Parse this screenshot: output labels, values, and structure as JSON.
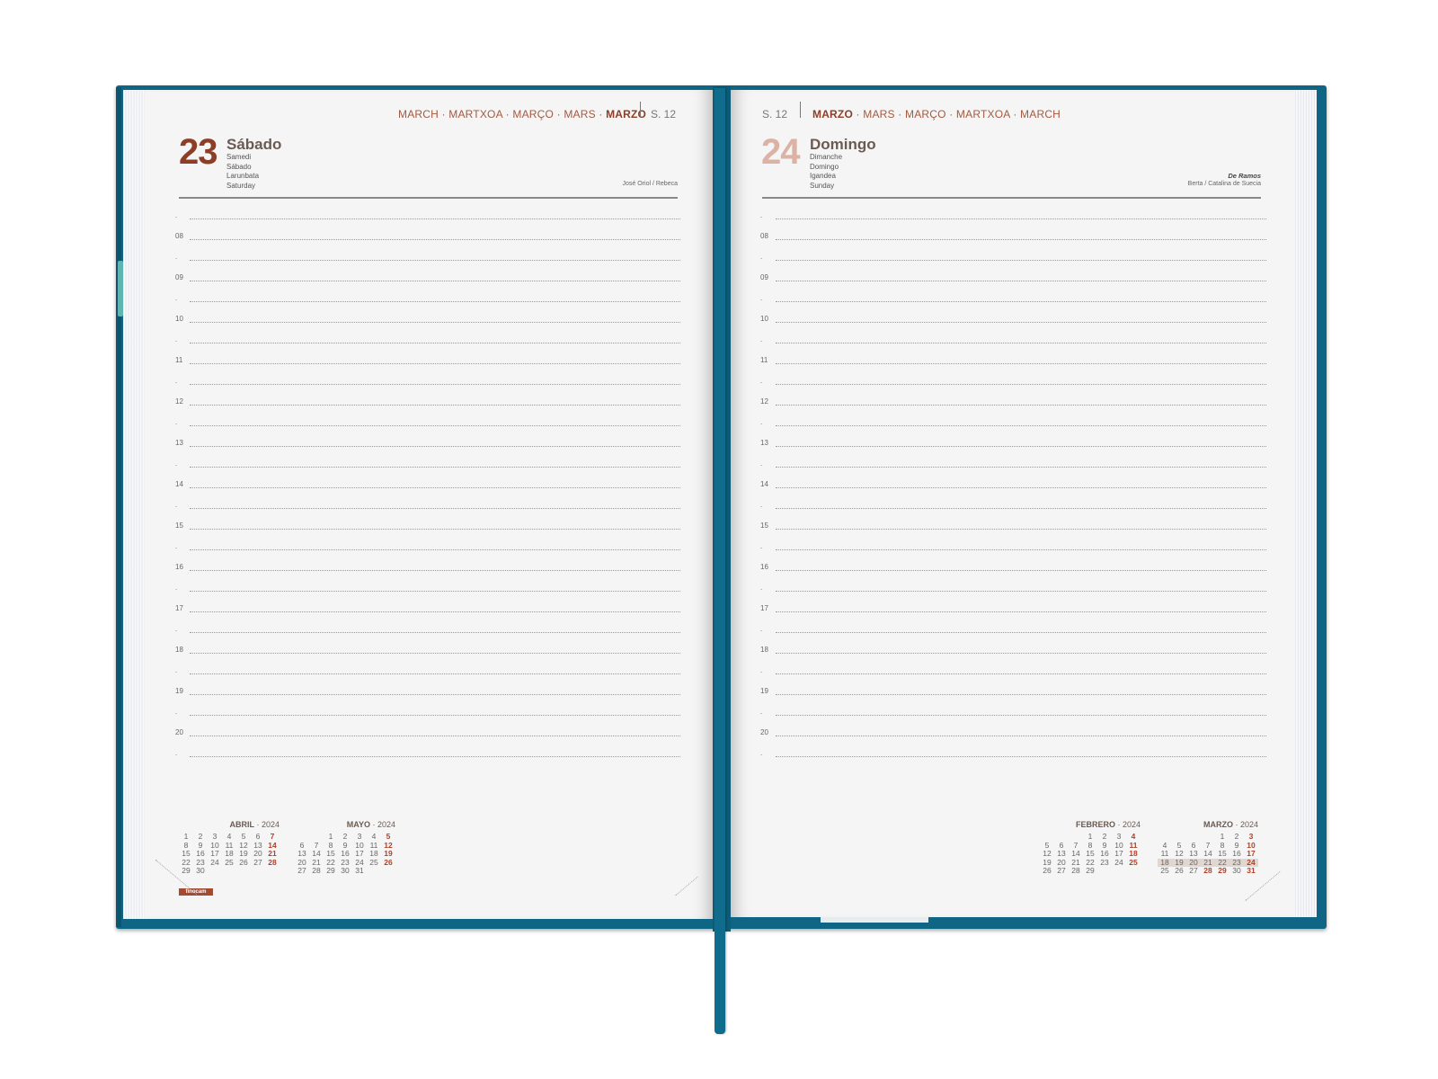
{
  "left_page": {
    "months_prefix": "MARCH · MARTXOA · MARÇO · MARS · ",
    "months_current": "MARZO",
    "week": "S. 12",
    "day_number": "23",
    "day_name": "Sábado",
    "translations": [
      "Samedi",
      "Sábado",
      "Larunbata",
      "Saturday"
    ],
    "saints": "José Oriol / Rebeca"
  },
  "right_page": {
    "week": "S. 12",
    "months_current": "MARZO",
    "months_suffix": " · MARS · MARÇO · MARTXOA · MARCH",
    "day_number": "24",
    "day_name": "Domingo",
    "translations": [
      "Dimanche",
      "Domingo",
      "Igandea",
      "Sunday"
    ],
    "feast": "De Ramos",
    "saints": "Berta / Catalina de Suecia"
  },
  "hours": [
    "08",
    "09",
    "10",
    "11",
    "12",
    "13",
    "14",
    "15",
    "16",
    "17",
    "18",
    "19",
    "20"
  ],
  "half_marker": ".",
  "brand": "finocam",
  "calendars": [
    {
      "month": "ABRIL",
      "year": " · 2024",
      "days": [
        "1",
        "2",
        "3",
        "4",
        "5",
        "6",
        "7",
        "8",
        "9",
        "10",
        "11",
        "12",
        "13",
        "14",
        "15",
        "16",
        "17",
        "18",
        "19",
        "20",
        "21",
        "22",
        "23",
        "24",
        "25",
        "26",
        "27",
        "28",
        "29",
        "30"
      ],
      "offset": 0,
      "sundays": [
        "7",
        "14",
        "21",
        "28"
      ]
    },
    {
      "month": "MAYO",
      "year": " · 2024",
      "days": [
        "1",
        "2",
        "3",
        "4",
        "5",
        "6",
        "7",
        "8",
        "9",
        "10",
        "11",
        "12",
        "13",
        "14",
        "15",
        "16",
        "17",
        "18",
        "19",
        "20",
        "21",
        "22",
        "23",
        "24",
        "25",
        "26",
        "27",
        "28",
        "29",
        "30",
        "31"
      ],
      "offset": 2,
      "sundays": [
        "5",
        "12",
        "19",
        "26"
      ]
    },
    {
      "month": "FEBRERO",
      "year": " · 2024",
      "days": [
        "1",
        "2",
        "3",
        "4",
        "5",
        "6",
        "7",
        "8",
        "9",
        "10",
        "11",
        "12",
        "13",
        "14",
        "15",
        "16",
        "17",
        "18",
        "19",
        "20",
        "21",
        "22",
        "23",
        "24",
        "25",
        "26",
        "27",
        "28",
        "29"
      ],
      "offset": 3,
      "sundays": [
        "4",
        "11",
        "18",
        "25"
      ]
    },
    {
      "month": "MARZO",
      "year": " · 2024",
      "days": [
        "1",
        "2",
        "3",
        "4",
        "5",
        "6",
        "7",
        "8",
        "9",
        "10",
        "11",
        "12",
        "13",
        "14",
        "15",
        "16",
        "17",
        "18",
        "19",
        "20",
        "21",
        "22",
        "23",
        "24",
        "25",
        "26",
        "27",
        "28",
        "29",
        "30",
        "31"
      ],
      "offset": 4,
      "sundays": [
        "3",
        "10",
        "17",
        "24",
        "28",
        "29",
        "31"
      ],
      "highlighted": [
        "18",
        "19",
        "20",
        "21",
        "22",
        "23",
        "24"
      ]
    }
  ],
  "colors": {
    "cover": "#0e6684",
    "accent": "#a35a40",
    "left_day_number": "#8c3f26",
    "right_day_number": "#dcb2a4"
  }
}
